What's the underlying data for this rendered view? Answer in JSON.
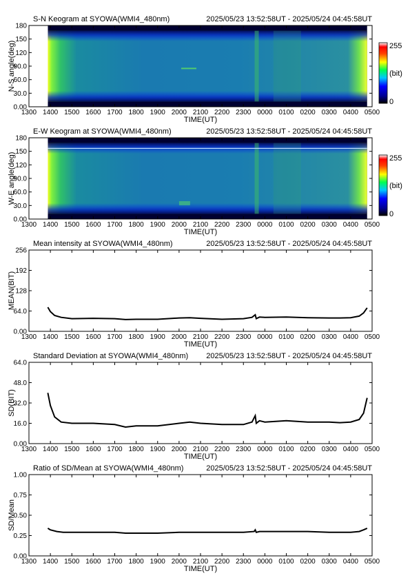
{
  "time_label": "2025/05/23 13:52:58UT - 2025/05/24 04:45:58UT",
  "x_ticks": [
    "1300",
    "1400",
    "1500",
    "1600",
    "1700",
    "1800",
    "1900",
    "2000",
    "2100",
    "2200",
    "2300",
    "0000",
    "0100",
    "0200",
    "0300",
    "0400",
    "0500"
  ],
  "colorbar": {
    "max_label": "255",
    "unit_label": "(bit)",
    "min_label": "0"
  },
  "chart_data": [
    {
      "type": "heatmap",
      "title": "S-N Keogram at SYOWA(WMI4_480nm)",
      "xlabel": "TIME(UT)",
      "ylabel": "N-S angle(deg)",
      "yticks": [
        "0.00",
        "30.0",
        "60.0",
        "90.0",
        "120",
        "150",
        "180"
      ],
      "ylim": [
        0,
        180
      ],
      "color_range": [
        0,
        255
      ],
      "colormap": "rainbow",
      "data_start_hour": 13.883,
      "data_end_hour": 28.767
    },
    {
      "type": "heatmap",
      "title": "E-W Keogram at SYOWA(WMI4_480nm)",
      "xlabel": "TIME(UT)",
      "ylabel": "W-E angle(deg)",
      "yticks": [
        "0.00",
        "30.0",
        "60.0",
        "90.0",
        "120",
        "150",
        "180"
      ],
      "ylim": [
        0,
        180
      ],
      "color_range": [
        0,
        255
      ],
      "colormap": "rainbow",
      "data_start_hour": 13.883,
      "data_end_hour": 28.767
    },
    {
      "type": "line",
      "title": "Mean intensity at SYOWA(WMI4_480nm)",
      "xlabel": "TIME(UT)",
      "ylabel": "MEAN(BIT)",
      "yticks": [
        "0.00",
        "64.0",
        "128",
        "192",
        "256"
      ],
      "ylim": [
        0,
        256
      ],
      "xlim": [
        13,
        29
      ],
      "series": [
        {
          "x": [
            13.88,
            14.0,
            14.2,
            14.5,
            15.0,
            16.0,
            17.0,
            17.5,
            18.0,
            19.0,
            20.0,
            20.5,
            21.0,
            22.0,
            23.0,
            23.4,
            23.55,
            23.6,
            23.75,
            24.0,
            25.0,
            26.0,
            27.0,
            27.5,
            28.0,
            28.4,
            28.6,
            28.77
          ],
          "y": [
            76,
            62,
            50,
            44,
            40,
            41,
            40,
            37,
            38,
            38,
            42,
            43,
            41,
            38,
            40,
            44,
            52,
            40,
            45,
            44,
            45,
            43,
            42,
            42,
            43,
            48,
            58,
            74
          ]
        }
      ]
    },
    {
      "type": "line",
      "title": "Standard Deviation at SYOWA(WMI4_480nm)",
      "xlabel": "TIME(UT)",
      "ylabel": "SD(BIT)",
      "yticks": [
        "0.00",
        "16.0",
        "32.0",
        "48.0",
        "64.0"
      ],
      "ylim": [
        0,
        64
      ],
      "xlim": [
        13,
        29
      ],
      "series": [
        {
          "x": [
            13.88,
            14.0,
            14.2,
            14.5,
            15.0,
            16.0,
            17.0,
            17.5,
            18.0,
            19.0,
            20.0,
            20.5,
            21.0,
            22.0,
            23.0,
            23.4,
            23.55,
            23.6,
            23.75,
            24.0,
            25.0,
            26.0,
            27.0,
            27.5,
            28.0,
            28.4,
            28.6,
            28.77
          ],
          "y": [
            40,
            30,
            21,
            17,
            16,
            16,
            15,
            13,
            14,
            14,
            16,
            17,
            16,
            15,
            15,
            17,
            22,
            16,
            18,
            17,
            18,
            17,
            17,
            16.5,
            17,
            19,
            24,
            36
          ]
        }
      ]
    },
    {
      "type": "line",
      "title": "Ratio of SD/Mean at SYOWA(WMI4_480nm)",
      "xlabel": "TIME(UT)",
      "ylabel": "SD/Mean",
      "yticks": [
        "0.00",
        "0.25",
        "0.50",
        "0.75",
        "1.00"
      ],
      "ylim": [
        0,
        1
      ],
      "xlim": [
        13,
        29
      ],
      "series": [
        {
          "x": [
            13.88,
            14.0,
            14.3,
            14.6,
            15.0,
            16.0,
            17.0,
            17.5,
            18.0,
            19.0,
            20.0,
            21.0,
            22.0,
            23.0,
            23.5,
            23.55,
            23.6,
            23.75,
            24.0,
            25.0,
            26.0,
            27.0,
            27.5,
            28.0,
            28.4,
            28.6,
            28.77
          ],
          "y": [
            0.34,
            0.32,
            0.3,
            0.29,
            0.29,
            0.29,
            0.29,
            0.28,
            0.28,
            0.28,
            0.29,
            0.29,
            0.29,
            0.29,
            0.3,
            0.32,
            0.29,
            0.3,
            0.3,
            0.3,
            0.3,
            0.29,
            0.29,
            0.29,
            0.3,
            0.32,
            0.34
          ]
        }
      ]
    }
  ]
}
